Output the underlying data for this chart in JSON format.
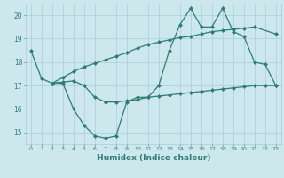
{
  "x": [
    0,
    1,
    2,
    3,
    4,
    5,
    6,
    7,
    8,
    9,
    10,
    11,
    12,
    13,
    14,
    15,
    16,
    17,
    18,
    19,
    20,
    21,
    22,
    23
  ],
  "line1": [
    18.5,
    17.3,
    17.1,
    17.1,
    16.0,
    15.3,
    14.85,
    14.75,
    14.85,
    16.3,
    16.5,
    16.5,
    17.0,
    18.5,
    19.6,
    20.3,
    19.5,
    19.5,
    20.3,
    19.3,
    19.1,
    18.0,
    17.9,
    17.0
  ],
  "line2_x": [
    2,
    3,
    4,
    5,
    6,
    7,
    8,
    9,
    10,
    11,
    12,
    13,
    14,
    15,
    16,
    17,
    18,
    19,
    20,
    21,
    22,
    23
  ],
  "line2": [
    17.1,
    17.15,
    17.2,
    17.0,
    16.5,
    16.3,
    16.3,
    16.35,
    16.4,
    16.5,
    16.55,
    16.6,
    16.65,
    16.7,
    16.75,
    16.8,
    16.85,
    16.9,
    16.95,
    17.0,
    17.0,
    17.0
  ],
  "line3_x": [
    2,
    3,
    4,
    5,
    6,
    7,
    8,
    9,
    10,
    11,
    12,
    13,
    14,
    15,
    16,
    17,
    18,
    19,
    20,
    21,
    23
  ],
  "line3": [
    17.1,
    17.35,
    17.6,
    17.8,
    17.95,
    18.1,
    18.25,
    18.4,
    18.6,
    18.75,
    18.85,
    18.95,
    19.05,
    19.1,
    19.2,
    19.3,
    19.35,
    19.4,
    19.45,
    19.5,
    19.2
  ],
  "color": "#2e7d72",
  "bg_color": "#cce8ec",
  "grid_color": "#aacdd4",
  "xlabel": "Humidex (Indice chaleur)",
  "ylim": [
    14.5,
    20.5
  ],
  "xlim": [
    -0.5,
    23.5
  ],
  "yticks": [
    15,
    16,
    17,
    18,
    19,
    20
  ],
  "xticks": [
    0,
    1,
    2,
    3,
    4,
    5,
    6,
    7,
    8,
    9,
    10,
    11,
    12,
    13,
    14,
    15,
    16,
    17,
    18,
    19,
    20,
    21,
    22,
    23
  ],
  "markersize": 2.5
}
